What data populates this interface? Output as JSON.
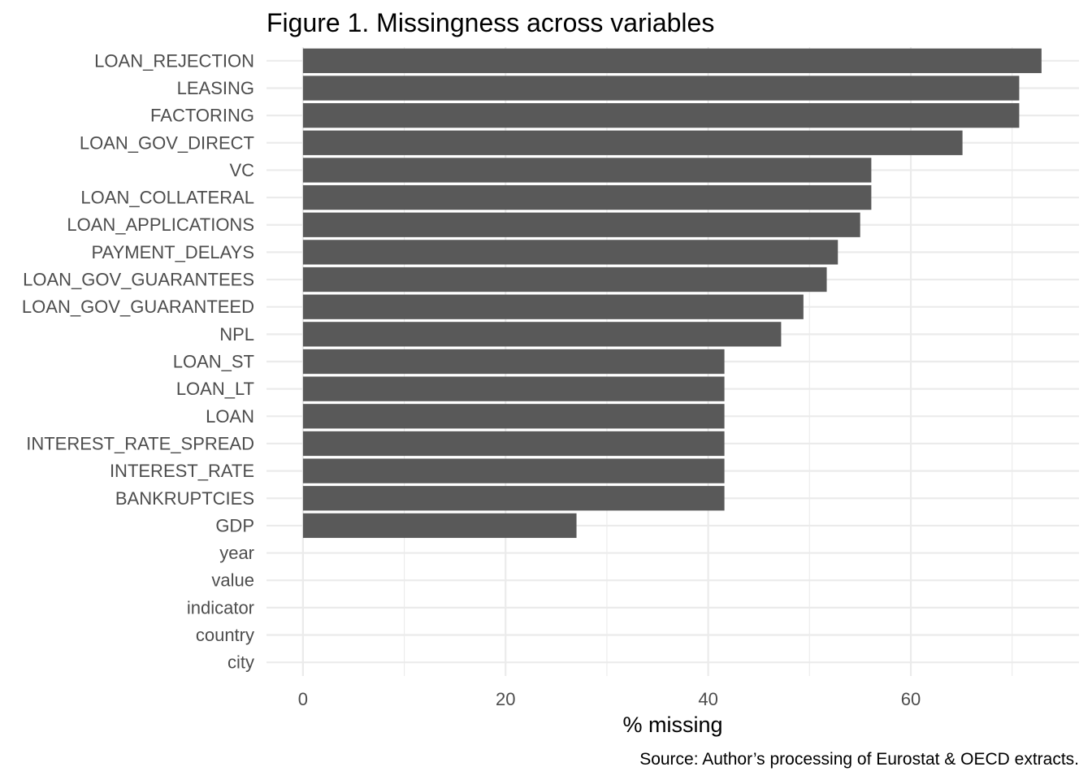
{
  "chart_data": {
    "type": "bar",
    "orientation": "horizontal",
    "title": "Figure 1. Missingness across variables",
    "xlabel": "% missing",
    "ylabel": "",
    "caption": "Source: Author’s processing of Eurostat & OECD extracts.",
    "xlim": [
      -3.6,
      76.6
    ],
    "x_ticks": [
      0,
      20,
      40,
      60
    ],
    "grid": true,
    "legend": "none",
    "bar_color": "#595959",
    "categories": [
      "LOAN_REJECTION",
      "LEASING",
      "FACTORING",
      "LOAN_GOV_DIRECT",
      "VC",
      "LOAN_COLLATERAL",
      "LOAN_APPLICATIONS",
      "PAYMENT_DELAYS",
      "LOAN_GOV_GUARANTEES",
      "LOAN_GOV_GUARANTEED",
      "NPL",
      "LOAN_ST",
      "LOAN_LT",
      "LOAN",
      "INTEREST_RATE_SPREAD",
      "INTEREST_RATE",
      "BANKRUPTCIES",
      "GDP",
      "year",
      "value",
      "indicator",
      "country",
      "city"
    ],
    "values": [
      72.9,
      70.7,
      70.7,
      65.1,
      56.1,
      56.1,
      55.0,
      52.8,
      51.7,
      49.4,
      47.2,
      41.6,
      41.6,
      41.6,
      41.6,
      41.6,
      41.6,
      27.0,
      0,
      0,
      0,
      0,
      0
    ]
  }
}
